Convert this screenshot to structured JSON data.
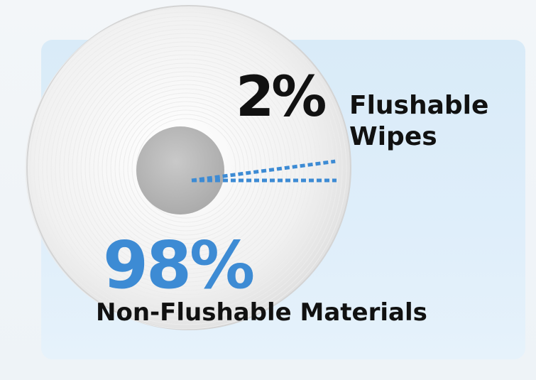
{
  "chart_data": {
    "type": "pie",
    "categories": [
      "Flushable Wipes",
      "Non-Flushable Materials"
    ],
    "values": [
      2,
      98
    ],
    "labels": [
      {
        "percent": "2%",
        "lines": [
          "Flushable",
          "Wipes"
        ]
      },
      {
        "percent": "98%",
        "lines": [
          "Non-Flushable Materials"
        ]
      }
    ],
    "colors": {
      "highlight_percent": "#3d8bd4",
      "slice_outline": "#3d8bd4",
      "text": "#111111",
      "panel": "#dcecf9",
      "roll": "#f2f2f2",
      "core": "#b9b9b9"
    }
  }
}
